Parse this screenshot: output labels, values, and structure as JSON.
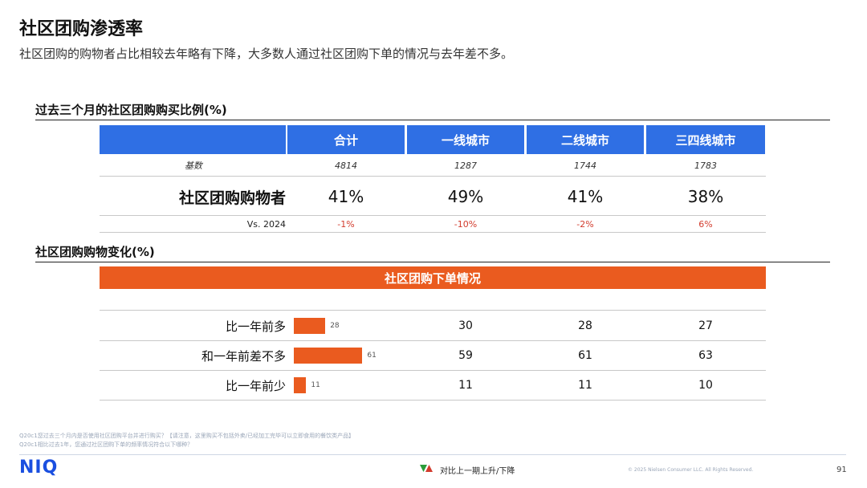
{
  "header": {
    "title": "社区团购渗透率",
    "subtitle": "社区团购的购物者占比相较去年略有下降，大多数人通过社区团购下单的情况与去年差不多。"
  },
  "section1": {
    "title": "过去三个月的社区团购购买比例(%)",
    "columns": [
      "合计",
      "一线城市",
      "二线城市",
      "三四线城市"
    ],
    "basis_label": "基数",
    "basis": [
      "4814",
      "1287",
      "1744",
      "1783"
    ],
    "row_label": "社区团购购物者",
    "values_text": [
      "41%",
      "49%",
      "41%",
      "38%"
    ],
    "vs_label": "Vs. 2024",
    "vs_values": [
      "-1%",
      "-10%",
      "-2%",
      "6%"
    ]
  },
  "section2": {
    "title": "社区团购购物变化(%)",
    "banner": "社区团购下单情况"
  },
  "chart_data": {
    "type": "bar",
    "orientation": "horizontal",
    "categories": [
      "比一年前多",
      "和一年前差不多",
      "比一年前少"
    ],
    "series": [
      {
        "values": [
          28,
          61,
          11
        ]
      },
      {
        "values": [
          30,
          59,
          11
        ]
      },
      {
        "values": [
          28,
          61,
          11
        ]
      },
      {
        "values": [
          27,
          63,
          10
        ]
      }
    ]
  },
  "footer": {
    "footnote1": "Q20c1您过去三个月内是否使用社区团购平台并进行购买？【请注意，这里购买不包括外卖/已经加工完毕可以立即食用的餐饮类产品】",
    "footnote2": "Q20c1相比过去1年，您通过社区团购下单的频率情况符合以下哪种？",
    "logo": "NIQ",
    "legend_note": "对比上一期上升/下降",
    "copyright": "© 2025 Nielsen Consumer LLC. All Rights Reserved.",
    "page_number": "91"
  },
  "colors": {
    "header_blue": "#2f6fe4",
    "accent_orange": "#ea5b1f",
    "negative_red": "#d23c2e",
    "up_green": "#2a9d3a"
  }
}
